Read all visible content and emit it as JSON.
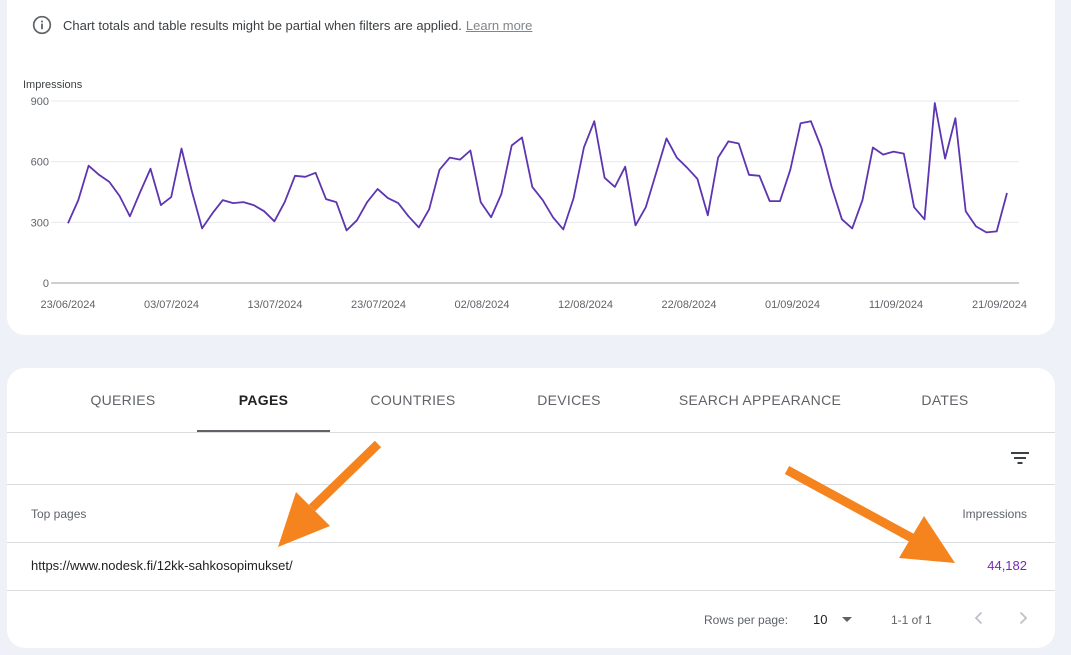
{
  "notice": {
    "text": "Chart totals and table results might be partial when filters are applied.",
    "link": "Learn more",
    "icon": "info-icon"
  },
  "chart_data": {
    "type": "line",
    "ylabel": "Impressions",
    "ylim": [
      0,
      900
    ],
    "yticks": [
      0,
      300,
      600,
      900
    ],
    "xticks": [
      "23/06/2024",
      "03/07/2024",
      "13/07/2024",
      "23/07/2024",
      "02/08/2024",
      "12/08/2024",
      "22/08/2024",
      "01/09/2024",
      "11/09/2024",
      "21/09/2024"
    ],
    "x_start": "23/06/2024",
    "x_end": "23/09/2024",
    "line_color": "#5e35b1",
    "grid": true,
    "series": [
      {
        "values": [
          295,
          410,
          580,
          535,
          500,
          430,
          330,
          450,
          565,
          385,
          425,
          665,
          455,
          270,
          345,
          410,
          395,
          400,
          385,
          355,
          305,
          400,
          530,
          525,
          545,
          415,
          400,
          260,
          310,
          400,
          465,
          420,
          395,
          330,
          275,
          365,
          560,
          620,
          610,
          655,
          400,
          325,
          440,
          680,
          720,
          475,
          410,
          325,
          265,
          420,
          670,
          800,
          520,
          475,
          575,
          285,
          375,
          545,
          715,
          620,
          570,
          515,
          335,
          620,
          700,
          690,
          535,
          530,
          405,
          405,
          560,
          790,
          800,
          670,
          475,
          315,
          270,
          410,
          670,
          635,
          650,
          640,
          375,
          315,
          890,
          615,
          815,
          355,
          280,
          250,
          255,
          445
        ]
      }
    ]
  },
  "tabs": [
    {
      "label": "QUERIES",
      "active": false
    },
    {
      "label": "PAGES",
      "active": true
    },
    {
      "label": "COUNTRIES",
      "active": false
    },
    {
      "label": "DEVICES",
      "active": false
    },
    {
      "label": "SEARCH APPEARANCE",
      "active": false
    },
    {
      "label": "DATES",
      "active": false
    }
  ],
  "table": {
    "col_pages": "Top pages",
    "col_impressions": "Impressions",
    "rows": [
      {
        "page": "https://www.nodesk.fi/12kk-sahkosopimukset/",
        "impressions": "44,182"
      }
    ]
  },
  "pager": {
    "rows_per_page_label": "Rows per page:",
    "rows_per_page": "10",
    "range": "1-1 of 1"
  },
  "colors": {
    "accent": "#7b27b3",
    "arrow": "#f5841f"
  }
}
